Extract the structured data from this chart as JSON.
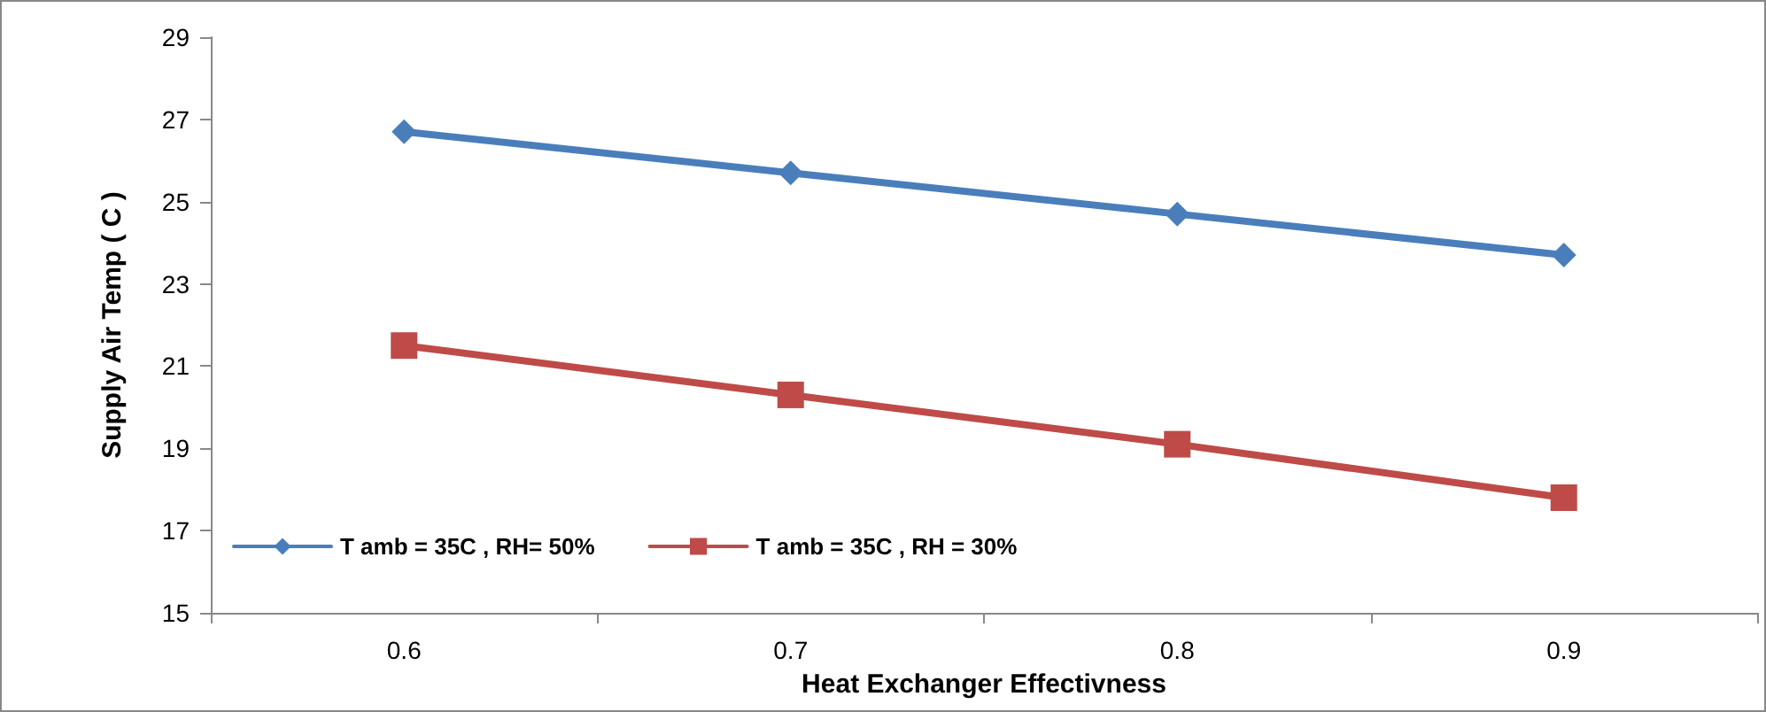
{
  "chart_data": {
    "type": "line",
    "xlabel": "Heat Exchanger Effectivness",
    "ylabel": "Supply Air Temp ( C )",
    "categories": [
      "0.6",
      "0.7",
      "0.8",
      "0.9"
    ],
    "series": [
      {
        "name": "T amb = 35C , RH= 50%",
        "color": "#4a7ebb",
        "marker": "diamond",
        "values": [
          26.7,
          25.7,
          24.7,
          23.7
        ]
      },
      {
        "name": "T amb = 35C , RH = 30%",
        "color": "#be4b48",
        "marker": "square",
        "values": [
          21.5,
          20.3,
          19.1,
          17.8
        ]
      }
    ],
    "ylim": [
      15,
      29
    ],
    "yticks": [
      15,
      17,
      19,
      21,
      23,
      25,
      27,
      29
    ],
    "grid": false,
    "legend": "bottom left",
    "line_style": "solid"
  }
}
